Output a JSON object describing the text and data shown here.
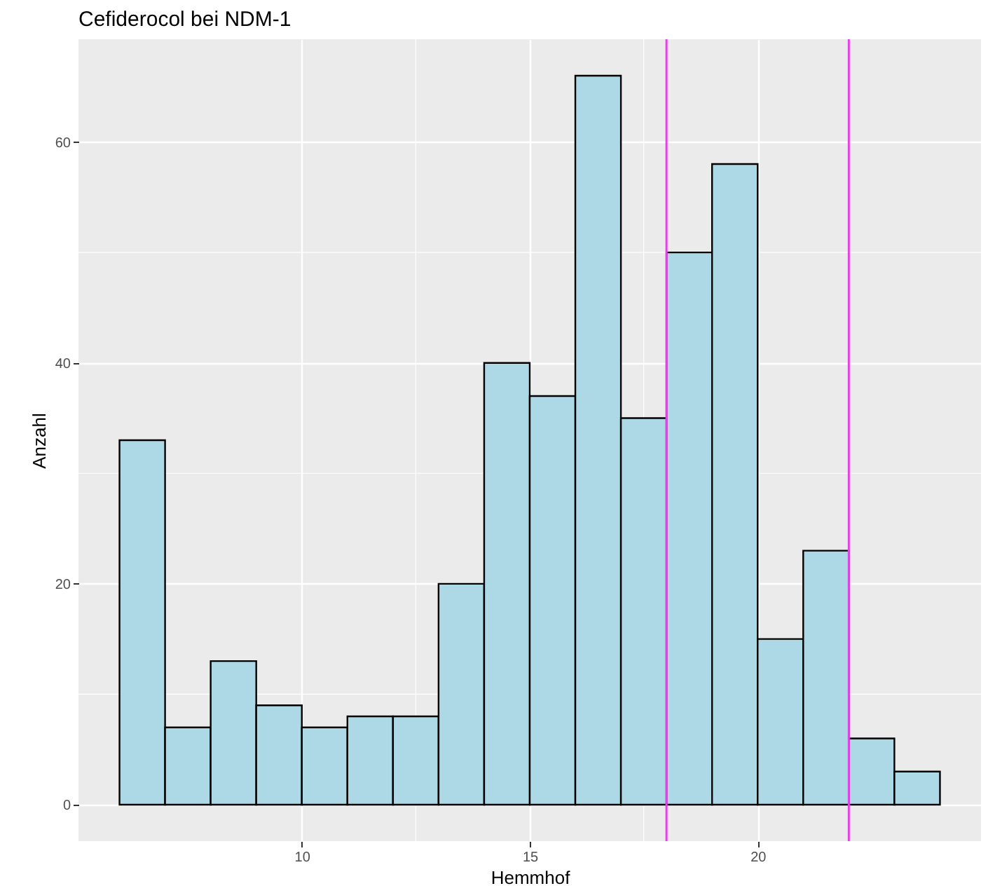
{
  "chart_data": {
    "type": "histogram",
    "title": "Cefiderocol bei NDM-1",
    "xlabel": "Hemmhof",
    "ylabel": "Anzahl",
    "bins": [
      6,
      7,
      8,
      9,
      10,
      11,
      12,
      13,
      14,
      15,
      16,
      17,
      18,
      19,
      20,
      21,
      22,
      23,
      24
    ],
    "values": [
      33,
      7,
      13,
      9,
      7,
      8,
      8,
      20,
      40,
      37,
      66,
      35,
      50,
      58,
      15,
      23,
      6,
      3
    ],
    "color": "#add8e6",
    "xlim": [
      5.1,
      24.9
    ],
    "ylim": [
      -3.3,
      69.3
    ],
    "xticks": [
      10,
      15,
      20
    ],
    "yticks": [
      0,
      20,
      40,
      60
    ],
    "grid": true,
    "ref_lines": [
      {
        "axis": "x",
        "value": 18,
        "color": "#e83fea"
      },
      {
        "axis": "x",
        "value": 22,
        "color": "#e83fea"
      }
    ]
  }
}
